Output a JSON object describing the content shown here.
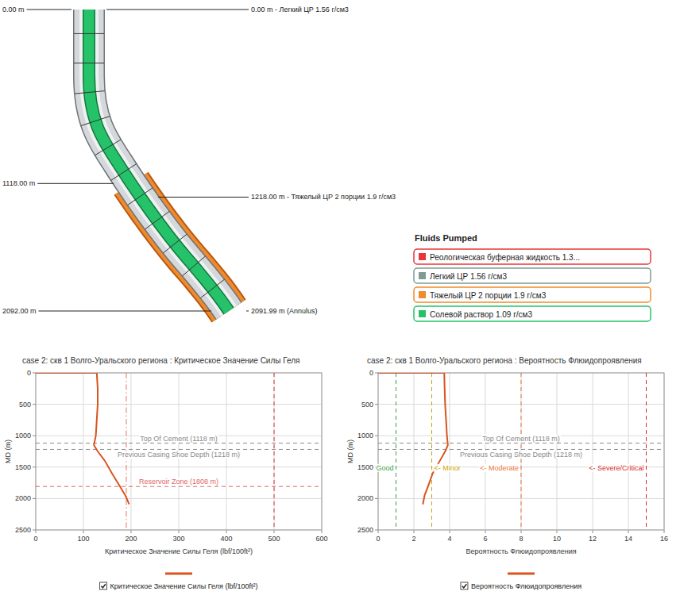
{
  "diagram": {
    "depth_labels": [
      {
        "md": 0,
        "label": "0.00 m"
      },
      {
        "md": 1118,
        "label": "1118.00 m"
      },
      {
        "md": 2092,
        "label": "2092.00 m"
      }
    ],
    "fluid_labels": [
      {
        "md": 0,
        "label": "0.00 m - Легкий ЦР 1.56 г/см3"
      },
      {
        "md": 1218,
        "label": "1218.00 m - Тяжелый ЦР 2 порции 1.9 г/см3"
      },
      {
        "md": 2091.99,
        "label": "2091.99 m (Annulus)"
      }
    ],
    "legend": {
      "title": "Fluids Pumped",
      "items": [
        {
          "label": "Реологическая буферная жидкость 1.3...",
          "color": "#e8343a"
        },
        {
          "label": "Легкий ЦР 1.56 г/см3",
          "color": "#7f9c94"
        },
        {
          "label": "Тяжелый ЦР 2 порции 1.9 г/см3",
          "color": "#f08a2c"
        },
        {
          "label": "Солевой раствор 1.09 г/см3",
          "color": "#26c26a"
        }
      ]
    }
  },
  "chart_data": [
    {
      "type": "line",
      "title": "case 2: скв 1 Волго-Уральского региона : Критическое Значение Силы Геля",
      "orientation": "horizontal",
      "x_label": "MD (m)",
      "y_label": "Критическое Значение Силы Геля (lbf/100ft²)",
      "x": [
        0,
        0,
        250,
        500,
        750,
        1000,
        1150,
        1250,
        1400,
        1600,
        1800,
        1950,
        2092
      ],
      "xlim": [
        0,
        2500
      ],
      "xticks": [
        0,
        500,
        1000,
        1500,
        2000,
        2500
      ],
      "ylim": [
        0,
        600
      ],
      "yticks": [
        0,
        100,
        200,
        300,
        400,
        500,
        600
      ],
      "grid": true,
      "legend": "bottom",
      "series": [
        {
          "name": "Критическое Значение Силы Геля (lbf/100ft²)",
          "color": "#d9541e",
          "line_style": "solid",
          "values": [
            0,
            128,
            130,
            130,
            128,
            126,
            122,
            130,
            145,
            160,
            176,
            188,
            196
          ]
        }
      ],
      "annotations": [
        {
          "text": "Top Of Cement (1118 m)",
          "value": 1118,
          "axis": "x",
          "color": "#8a8a8a",
          "line_style": "dashed"
        },
        {
          "text": "Previous Casing Shoe Depth (1218 m)",
          "value": 1218,
          "axis": "x",
          "color": "#8a8a8a",
          "line_style": "dashed"
        },
        {
          "text": "Reservoir Zone (1808 m)",
          "value": 1808,
          "axis": "x",
          "color": "#e06666",
          "line_style": "dashed"
        },
        {
          "value": 190,
          "axis": "y",
          "color": "#e07a5f",
          "line_style": "dashdot"
        },
        {
          "value": 500,
          "axis": "y",
          "color": "#d93030",
          "line_style": "dashed"
        }
      ]
    },
    {
      "type": "line",
      "title": "case 2: скв 1 Волго-Уральского региона : Вероятность Флюидопроявления",
      "orientation": "horizontal",
      "x_label": "MD (m)",
      "y_label": "Вероятность Флюидопроявления",
      "x": [
        0,
        0,
        250,
        500,
        750,
        1000,
        1150,
        1250,
        1400,
        1600,
        1800,
        1950,
        2092
      ],
      "xlim": [
        0,
        2500
      ],
      "xticks": [
        0,
        500,
        1000,
        1500,
        2000,
        2500
      ],
      "ylim": [
        0,
        16
      ],
      "yticks": [
        0,
        2,
        4,
        6,
        8,
        10,
        12,
        14,
        16
      ],
      "grid": true,
      "legend": "bottom",
      "series": [
        {
          "name": "Вероятность Флюидопроявления",
          "color": "#d9541e",
          "line_style": "solid",
          "values": [
            0,
            3.7,
            3.72,
            3.75,
            3.8,
            3.85,
            3.9,
            3.75,
            3.45,
            3.05,
            2.8,
            2.6,
            2.5
          ]
        }
      ],
      "annotations": [
        {
          "text": "Top Of Cement (1118 m)",
          "value": 1118,
          "axis": "x",
          "color": "#8a8a8a",
          "line_style": "dashed"
        },
        {
          "text": "Previous Casing Shoe Depth (1218 m)",
          "value": 1218,
          "axis": "x",
          "color": "#8a8a8a",
          "line_style": "dashed"
        },
        {
          "text": "Good",
          "value": 1,
          "axis": "y",
          "color": "#3f9f3f",
          "line_style": "dashed"
        },
        {
          "text": "<- Minor",
          "value": 3,
          "axis": "y",
          "color": "#c9a200",
          "line_style": "dashed"
        },
        {
          "text": "<- Moderate",
          "value": 8,
          "axis": "y",
          "color": "#e8743a",
          "line_style": "dashed"
        },
        {
          "text": "<- Severe/Critical",
          "value": 15,
          "axis": "y",
          "color": "#d62828",
          "line_style": "dashed"
        }
      ]
    }
  ]
}
